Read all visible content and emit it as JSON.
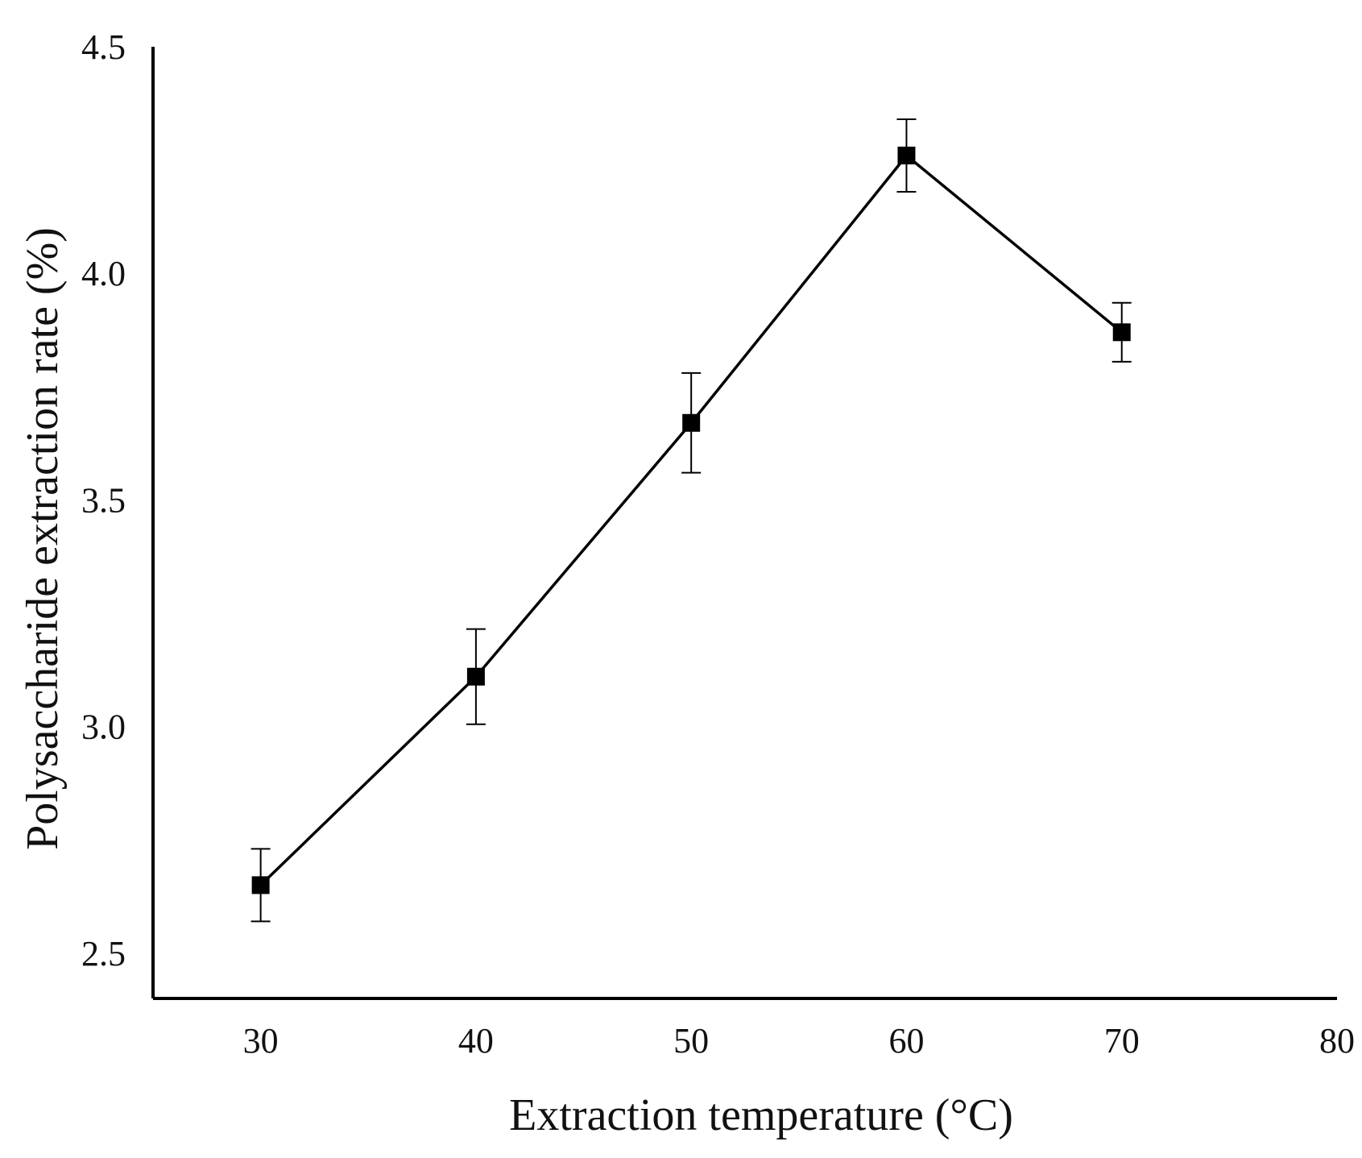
{
  "chart_data": {
    "type": "line",
    "title": "",
    "xlabel": "Extraction temperature (°C)",
    "ylabel": "Polysaccharide extraction rate (%)",
    "xlim": [
      25,
      80
    ],
    "ylim": [
      2.4,
      4.5
    ],
    "x_ticks": [
      30,
      40,
      50,
      60,
      70,
      80
    ],
    "x_tick_labels": [
      "30",
      "40",
      "50",
      "60",
      "70",
      "80"
    ],
    "y_ticks": [
      2.5,
      3.0,
      3.5,
      4.0,
      4.5
    ],
    "y_tick_labels": [
      "2.5",
      "3.0",
      "3.5",
      "4.0",
      "4.5"
    ],
    "grid": false,
    "series": [
      {
        "name": "Extraction rate",
        "x": [
          30,
          40,
          50,
          60,
          70
        ],
        "values": [
          2.65,
          3.11,
          3.67,
          4.26,
          3.87
        ],
        "errors": [
          0.08,
          0.105,
          0.11,
          0.08,
          0.065
        ]
      }
    ],
    "colors": {
      "line": "#000000",
      "marker": "#000000",
      "axis": "#000000"
    }
  }
}
